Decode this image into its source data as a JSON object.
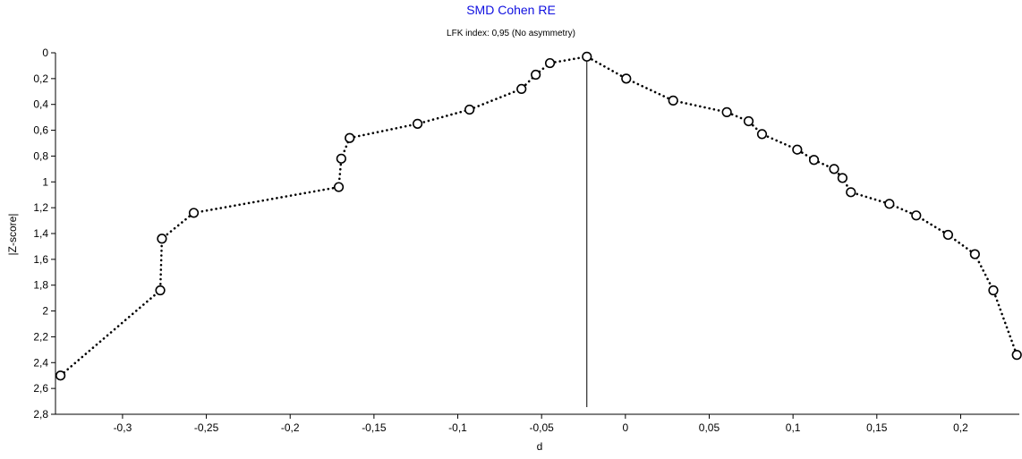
{
  "chart_data": {
    "type": "scatter",
    "title": "SMD Cohen RE",
    "subtitle": "LFK index: 0,95 (No asymmetry)",
    "xlabel": "d",
    "ylabel": "|Z-score|",
    "xlim": [
      -0.34,
      0.235
    ],
    "ylim": [
      0,
      2.8
    ],
    "y_inverted": true,
    "grid": false,
    "decimal_separator": ",",
    "x_ticks": [
      -0.3,
      -0.25,
      -0.2,
      -0.15,
      -0.1,
      -0.05,
      0,
      0.05,
      0.1,
      0.15,
      0.2
    ],
    "x_tick_labels": [
      "-0,3",
      "-0,25",
      "-0,2",
      "-0,15",
      "-0,1",
      "-0,05",
      "0",
      "0,05",
      "0,1",
      "0,15",
      "0,2"
    ],
    "y_ticks": [
      0,
      0.2,
      0.4,
      0.6,
      0.8,
      1,
      1.2,
      1.4,
      1.6,
      1.8,
      2,
      2.2,
      2.4,
      2.6,
      2.8
    ],
    "y_tick_labels": [
      "0",
      "0,2",
      "0,4",
      "0,6",
      "0,8",
      "1",
      "1,2",
      "1,4",
      "1,6",
      "1,8",
      "2",
      "2,2",
      "2,4",
      "2,6",
      "2,8"
    ],
    "vertical_line_x": -0.023,
    "points": [
      {
        "x": -0.337,
        "y": 2.5
      },
      {
        "x": -0.2775,
        "y": 1.84
      },
      {
        "x": -0.2765,
        "y": 1.44
      },
      {
        "x": -0.2575,
        "y": 1.24
      },
      {
        "x": -0.171,
        "y": 1.04
      },
      {
        "x": -0.1695,
        "y": 0.82
      },
      {
        "x": -0.1645,
        "y": 0.66
      },
      {
        "x": -0.124,
        "y": 0.55
      },
      {
        "x": -0.093,
        "y": 0.44
      },
      {
        "x": -0.062,
        "y": 0.28
      },
      {
        "x": -0.0535,
        "y": 0.17
      },
      {
        "x": -0.045,
        "y": 0.08
      },
      {
        "x": -0.023,
        "y": 0.03
      },
      {
        "x": 0.0005,
        "y": 0.2
      },
      {
        "x": 0.0285,
        "y": 0.37
      },
      {
        "x": 0.0605,
        "y": 0.46
      },
      {
        "x": 0.0735,
        "y": 0.53
      },
      {
        "x": 0.0815,
        "y": 0.63
      },
      {
        "x": 0.1025,
        "y": 0.75
      },
      {
        "x": 0.1125,
        "y": 0.83
      },
      {
        "x": 0.1245,
        "y": 0.9
      },
      {
        "x": 0.1295,
        "y": 0.97
      },
      {
        "x": 0.1345,
        "y": 1.08
      },
      {
        "x": 0.1575,
        "y": 1.17
      },
      {
        "x": 0.1735,
        "y": 1.26
      },
      {
        "x": 0.1925,
        "y": 1.41
      },
      {
        "x": 0.2085,
        "y": 1.56
      },
      {
        "x": 0.2195,
        "y": 1.84
      },
      {
        "x": 0.2335,
        "y": 2.34
      }
    ],
    "marker_color": "#000000",
    "line_color": "#000000",
    "title_color": "#1010e0"
  }
}
